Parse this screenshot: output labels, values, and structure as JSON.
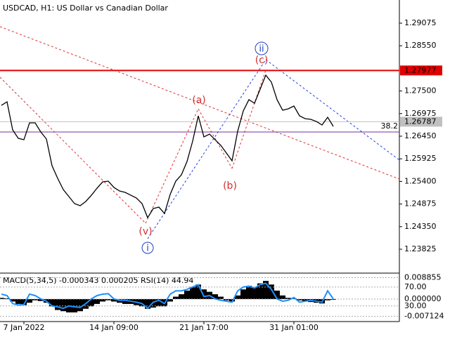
{
  "chart_data": [
    {
      "type": "line",
      "title": "USDCAD, H1:  US Dollar vs Canadian Dollar",
      "color": "#000000",
      "categories": [
        null,
        null,
        null,
        null,
        "7 Jan 2022",
        null,
        null,
        null,
        null,
        null,
        null,
        null,
        null,
        null,
        null,
        null,
        null,
        null,
        null,
        null,
        "14 Jan 09:00",
        null,
        null,
        null,
        null,
        null,
        null,
        null,
        null,
        null,
        null,
        null,
        null,
        null,
        null,
        null,
        "21 Jan 17:00",
        null,
        null,
        null,
        null,
        null,
        null,
        null,
        null,
        null,
        null,
        null,
        null,
        null,
        null,
        null,
        "31 Jan 01:00",
        null,
        null,
        null,
        null,
        null,
        null,
        null
      ],
      "values": [
        1.27167,
        1.27249,
        1.26597,
        1.26401,
        1.26368,
        1.2676,
        1.2676,
        1.26548,
        1.26385,
        1.25765,
        1.25472,
        1.25211,
        1.25048,
        1.24885,
        1.24836,
        1.24934,
        1.2508,
        1.25243,
        1.2539,
        1.25406,
        1.2526,
        1.25178,
        1.25145,
        1.2508,
        1.25015,
        1.24885,
        1.24558,
        1.2477,
        1.24803,
        1.24656,
        1.25097,
        1.25406,
        1.25553,
        1.25863,
        1.26336,
        1.26923,
        1.26434,
        1.26499,
        1.26368,
        1.26238,
        1.26059,
        1.25879,
        1.26564,
        1.27037,
        1.27298,
        1.27216,
        1.27542,
        1.27868,
        1.27705,
        1.27298,
        1.27053,
        1.27086,
        1.27151,
        1.26923,
        1.26858,
        1.26841,
        1.26792,
        1.26711,
        1.2689,
        1.26678
      ],
      "ylim": [
        1.23287,
        1.29613
      ],
      "yticks": [
        1.29075,
        {
          "value": 1.2855,
          "label": "1.28550"
        },
        {
          "value": 1.275,
          "label": "1.27500"
        },
        1.26975,
        {
          "value": 1.2645,
          "label": "1.26450"
        },
        1.25925,
        {
          "value": 1.254,
          "label": "1.25400"
        },
        1.24875,
        {
          "value": 1.2435,
          "label": "1.24350"
        },
        1.23825
      ],
      "levels": [
        {
          "value": 1.27977,
          "color": "#e00000"
        },
        {
          "value": 1.26787,
          "color": "#c0c0c0"
        }
      ],
      "fib": {
        "level": 38.2,
        "price": 1.26548,
        "color": "#7030a0"
      },
      "waves": [
        "(a)",
        "(b)",
        "(c)",
        "(v)",
        "i",
        "ii"
      ]
    },
    {
      "type": "macd",
      "title": "MACD(5,34,5) -0.000343 0.000205 RSI(14) 44.94",
      "color": "#000000",
      "values": [
        0.0005,
        0.0003,
        -0.001,
        -0.002,
        -0.0025,
        -0.0015,
        -0.0005,
        -0.0008,
        -0.0015,
        -0.003,
        -0.0045,
        -0.005,
        -0.0055,
        -0.0055,
        -0.005,
        -0.004,
        -0.003,
        -0.002,
        -0.001,
        -0.0005,
        -0.001,
        -0.0015,
        -0.002,
        -0.002,
        -0.0025,
        -0.003,
        -0.004,
        -0.0035,
        -0.003,
        -0.003,
        -0.001,
        0.001,
        0.002,
        0.0035,
        0.005,
        0.006,
        0.004,
        0.003,
        0.002,
        0.001,
        -0.0005,
        -0.001,
        0.0015,
        0.004,
        0.0055,
        0.005,
        0.0065,
        0.0075,
        0.006,
        0.0035,
        0.0015,
        0.0005,
        0.0003,
        -0.0005,
        -0.001,
        -0.0012,
        -0.0015,
        -0.0018,
        -0.0005,
        -0.0003
      ],
      "ylim": [
        -0.0087,
        0.01044
      ],
      "yticks": [
        0.008855,
        {
          "value": 0,
          "label": "0.000000"
        },
        -0.007124
      ],
      "rsi": {
        "color": "#1e90ff",
        "values": [
          55,
          52,
          35,
          32,
          33,
          55,
          52,
          45,
          40,
          30,
          28,
          25,
          30,
          28,
          27,
          35,
          45,
          52,
          55,
          56,
          45,
          42,
          42,
          40,
          38,
          35,
          25,
          38,
          42,
          35,
          55,
          62,
          62,
          65,
          70,
          75,
          50,
          52,
          45,
          42,
          40,
          38,
          62,
          70,
          72,
          68,
          75,
          78,
          65,
          45,
          40,
          42,
          48,
          38,
          40,
          42,
          40,
          38,
          62,
          44.94
        ],
        "y2lim": [
          0,
          98
        ],
        "y2ticks": [
          {
            "value": 70,
            "label": "70.00"
          },
          {
            "value": 30,
            "label": "30.00"
          }
        ]
      }
    }
  ]
}
